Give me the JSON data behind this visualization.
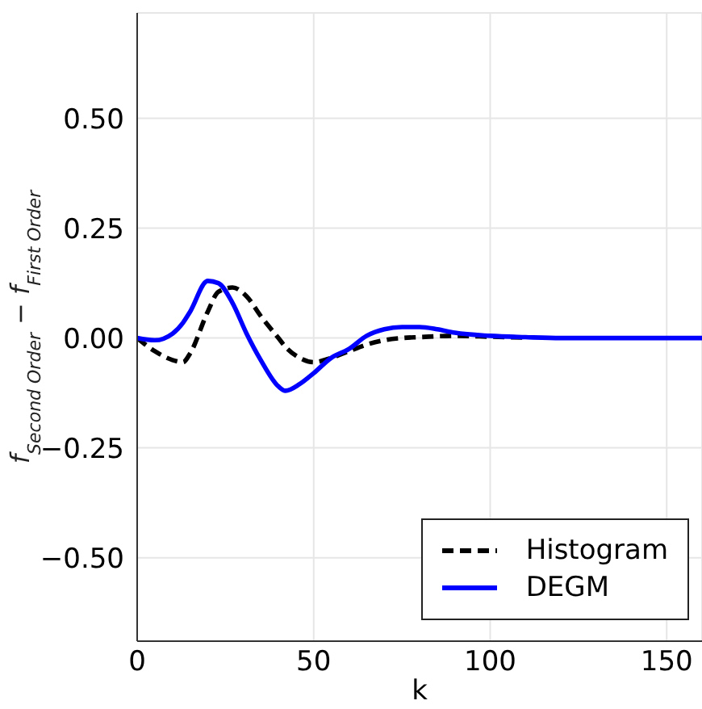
{
  "chart_data": {
    "type": "line",
    "xlabel": "k",
    "ylabel": "f$_{Second Order}$ − f$_{First Order}$",
    "x": [
      0,
      5,
      10,
      13,
      15,
      20,
      23,
      27,
      31,
      35,
      40,
      42,
      46,
      50,
      55,
      60,
      65,
      70,
      75,
      80,
      85,
      90,
      100,
      110,
      120,
      140,
      160
    ],
    "series": [
      {
        "name": "Histogram",
        "color": "#000000",
        "line_style": "dashed",
        "values": [
          0,
          -0.03,
          -0.05,
          -0.055,
          -0.035,
          0.06,
          0.105,
          0.115,
          0.095,
          0.05,
          0,
          -0.02,
          -0.045,
          -0.055,
          -0.045,
          -0.03,
          -0.015,
          -0.005,
          0,
          0.002,
          0.004,
          0.005,
          0.003,
          0.001,
          null,
          null,
          null
        ]
      },
      {
        "name": "DEGM",
        "color": "#0000ff",
        "line_style": "solid",
        "values": [
          0,
          -0.005,
          0.01,
          0.035,
          0.06,
          0.13,
          0.125,
          0.08,
          0.01,
          -0.05,
          -0.11,
          -0.12,
          -0.105,
          -0.08,
          -0.045,
          -0.025,
          0.005,
          0.02,
          0.025,
          0.025,
          0.02,
          0.012,
          0.005,
          0.002,
          0,
          0,
          0
        ]
      }
    ],
    "xlim": [
      0,
      160
    ],
    "xticks": [
      0,
      50,
      100,
      150
    ],
    "ylim": [
      -0.69,
      0.74
    ],
    "yticks": [
      {
        "value": -0.5,
        "label": "−0.50"
      },
      {
        "value": -0.25,
        "label": "−0.25"
      },
      {
        "value": 0,
        "label": "0.00"
      },
      {
        "value": 0.25,
        "label": "0.25"
      },
      {
        "value": 0.5,
        "label": "0.50"
      }
    ],
    "grid": true,
    "legend": "bottom right",
    "marker": "none"
  }
}
